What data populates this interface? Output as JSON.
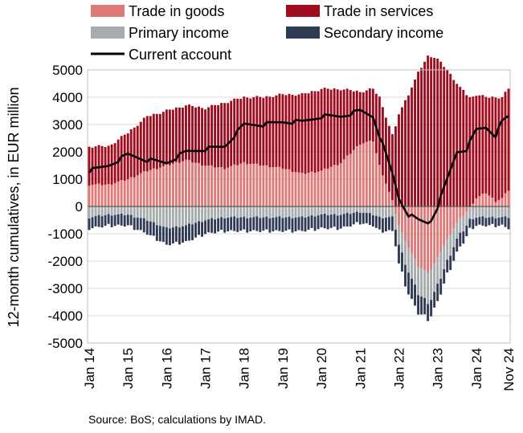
{
  "chart_data": {
    "type": "bar",
    "stacked": true,
    "ylabel": "12-month cumulatives, in EUR million",
    "ylim": [
      -5000,
      5000
    ],
    "yticks": [
      5000,
      4000,
      3000,
      2000,
      1000,
      0,
      -1000,
      -2000,
      -3000,
      -4000,
      -5000
    ],
    "x_tick_labels": [
      "Jan 14",
      "Jan 15",
      "Jan 16",
      "Jan 17",
      "Jan 18",
      "Jan 19",
      "Jan 20",
      "Jan 21",
      "Jan 22",
      "Jan 23",
      "Jan 24",
      "Nov 24"
    ],
    "x_period": "monthly, Jan 2014 to Nov 2024",
    "grid": "horizontal",
    "legend_position": "top",
    "source": "Source: BoS; calculations by IMAD.",
    "series_keys": {
      "Trade in goods": [
        [
          0,
          800
        ],
        [
          6,
          800
        ],
        [
          12,
          1000
        ],
        [
          18,
          1300
        ],
        [
          24,
          1500
        ],
        [
          30,
          1700
        ],
        [
          36,
          1500
        ],
        [
          42,
          1400
        ],
        [
          48,
          1600
        ],
        [
          54,
          1500
        ],
        [
          60,
          1400
        ],
        [
          66,
          1200
        ],
        [
          72,
          1300
        ],
        [
          78,
          1600
        ],
        [
          84,
          2300
        ],
        [
          88,
          2400
        ],
        [
          90,
          1500
        ],
        [
          94,
          200
        ],
        [
          96,
          -700
        ],
        [
          99,
          -1500
        ],
        [
          102,
          -2200
        ],
        [
          105,
          -2400
        ],
        [
          106,
          -2300
        ],
        [
          108,
          -1900
        ],
        [
          111,
          -1200
        ],
        [
          114,
          -600
        ],
        [
          117,
          -200
        ],
        [
          120,
          300
        ],
        [
          123,
          500
        ],
        [
          126,
          200
        ],
        [
          128,
          300
        ],
        [
          130,
          600
        ]
      ],
      "Trade in services": [
        [
          0,
          1400
        ],
        [
          6,
          1400
        ],
        [
          12,
          1700
        ],
        [
          18,
          2000
        ],
        [
          24,
          2000
        ],
        [
          30,
          2000
        ],
        [
          36,
          2100
        ],
        [
          42,
          2400
        ],
        [
          48,
          2400
        ],
        [
          54,
          2500
        ],
        [
          60,
          2700
        ],
        [
          66,
          2900
        ],
        [
          72,
          3000
        ],
        [
          78,
          2700
        ],
        [
          84,
          1900
        ],
        [
          88,
          1900
        ],
        [
          90,
          2500
        ],
        [
          94,
          2400
        ],
        [
          96,
          3400
        ],
        [
          99,
          4100
        ],
        [
          102,
          4900
        ],
        [
          105,
          5500
        ],
        [
          106,
          5500
        ],
        [
          108,
          5400
        ],
        [
          111,
          5000
        ],
        [
          114,
          4500
        ],
        [
          117,
          4100
        ],
        [
          120,
          3800
        ],
        [
          123,
          3500
        ],
        [
          126,
          3800
        ],
        [
          128,
          3700
        ],
        [
          130,
          3700
        ]
      ],
      "Primary income": [
        [
          0,
          -400
        ],
        [
          6,
          -300
        ],
        [
          12,
          -300
        ],
        [
          18,
          -500
        ],
        [
          24,
          -800
        ],
        [
          30,
          -700
        ],
        [
          36,
          -500
        ],
        [
          42,
          -400
        ],
        [
          48,
          -400
        ],
        [
          54,
          -400
        ],
        [
          60,
          -400
        ],
        [
          66,
          -400
        ],
        [
          72,
          -300
        ],
        [
          78,
          -300
        ],
        [
          84,
          -200
        ],
        [
          88,
          -300
        ],
        [
          90,
          -400
        ],
        [
          94,
          -400
        ],
        [
          96,
          -700
        ],
        [
          99,
          -900
        ],
        [
          102,
          -1000
        ],
        [
          105,
          -1100
        ],
        [
          106,
          -1100
        ],
        [
          108,
          -1000
        ],
        [
          111,
          -800
        ],
        [
          114,
          -600
        ],
        [
          117,
          -500
        ],
        [
          120,
          -400
        ],
        [
          123,
          -400
        ],
        [
          126,
          -400
        ],
        [
          128,
          -400
        ],
        [
          130,
          -400
        ]
      ],
      "Secondary income": [
        [
          0,
          -400
        ],
        [
          6,
          -400
        ],
        [
          12,
          -400
        ],
        [
          18,
          -500
        ],
        [
          24,
          -600
        ],
        [
          30,
          -600
        ],
        [
          36,
          -500
        ],
        [
          42,
          -500
        ],
        [
          48,
          -500
        ],
        [
          54,
          -500
        ],
        [
          60,
          -500
        ],
        [
          66,
          -500
        ],
        [
          72,
          -500
        ],
        [
          78,
          -500
        ],
        [
          84,
          -400
        ],
        [
          88,
          -400
        ],
        [
          90,
          -500
        ],
        [
          94,
          -500
        ],
        [
          96,
          -700
        ],
        [
          99,
          -800
        ],
        [
          102,
          -700
        ],
        [
          105,
          -600
        ],
        [
          106,
          -600
        ],
        [
          108,
          -600
        ],
        [
          111,
          -500
        ],
        [
          114,
          -500
        ],
        [
          117,
          -400
        ],
        [
          120,
          -300
        ],
        [
          123,
          -300
        ],
        [
          126,
          -300
        ],
        [
          128,
          -300
        ],
        [
          130,
          -400
        ]
      ]
    },
    "current_account_keys": [
      [
        0,
        1300
      ],
      [
        6,
        1500
      ],
      [
        12,
        1900
      ],
      [
        18,
        1700
      ],
      [
        24,
        1600
      ],
      [
        30,
        2000
      ],
      [
        36,
        2100
      ],
      [
        42,
        2200
      ],
      [
        48,
        3000
      ],
      [
        54,
        3000
      ],
      [
        60,
        3100
      ],
      [
        66,
        3100
      ],
      [
        72,
        3300
      ],
      [
        78,
        3300
      ],
      [
        84,
        3500
      ],
      [
        88,
        3300
      ],
      [
        90,
        2600
      ],
      [
        94,
        1200
      ],
      [
        96,
        300
      ],
      [
        99,
        -300
      ],
      [
        102,
        -500
      ],
      [
        105,
        -600
      ],
      [
        106,
        -500
      ],
      [
        108,
        0
      ],
      [
        111,
        1000
      ],
      [
        114,
        2000
      ],
      [
        117,
        2100
      ],
      [
        120,
        2800
      ],
      [
        123,
        2900
      ],
      [
        125,
        2700
      ],
      [
        126,
        2600
      ],
      [
        128,
        3100
      ],
      [
        130,
        3300
      ]
    ],
    "legend": [
      {
        "label": "Trade in goods",
        "color": "#e07a78",
        "kind": "box"
      },
      {
        "label": "Trade in services",
        "color": "#a00b1e",
        "kind": "box"
      },
      {
        "label": "Primary income",
        "color": "#a6acae",
        "kind": "box"
      },
      {
        "label": "Secondary income",
        "color": "#2f3a55",
        "kind": "box"
      },
      {
        "label": "Current account",
        "color": "#000000",
        "kind": "line"
      }
    ]
  }
}
